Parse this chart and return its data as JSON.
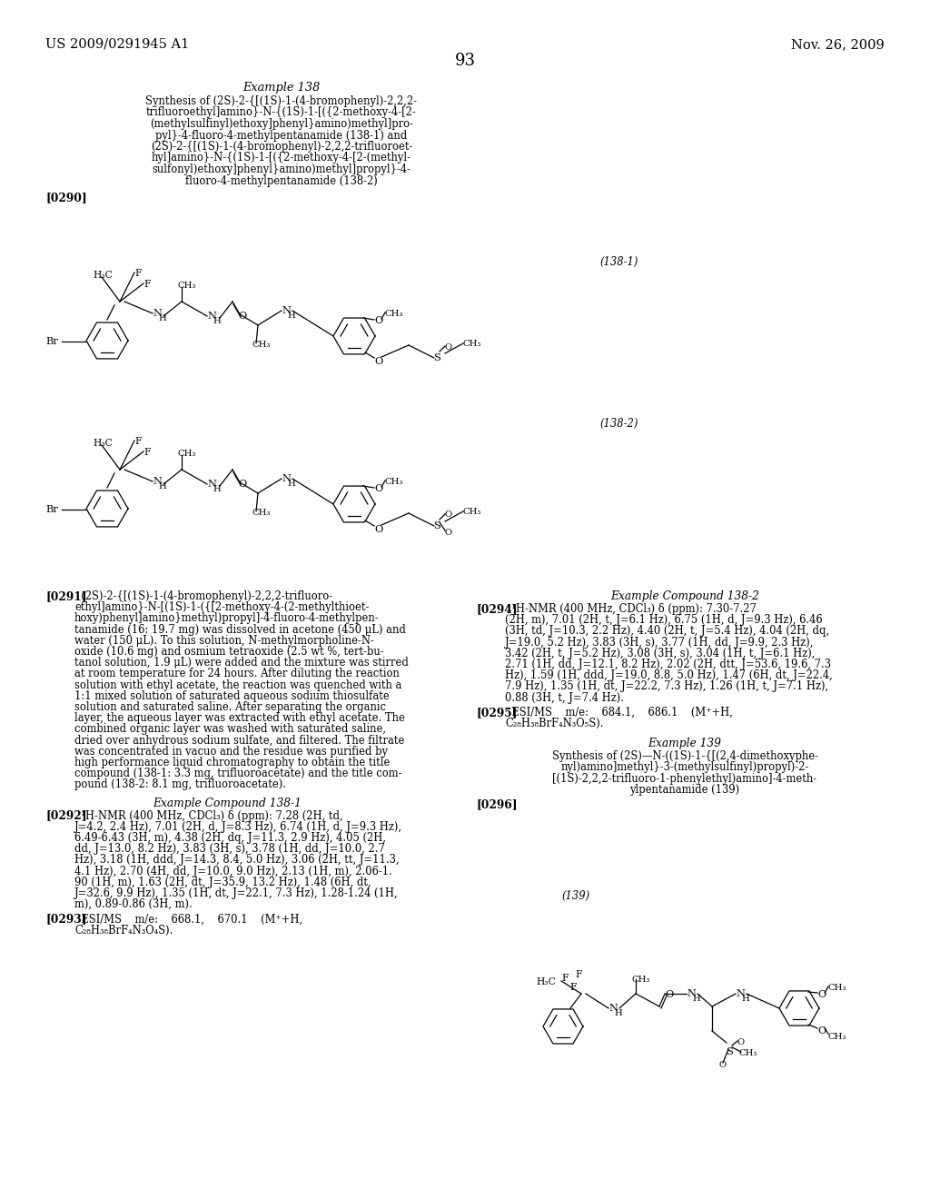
{
  "bg_color": "#ffffff",
  "header_left": "US 2009/0291945 A1",
  "header_right": "Nov. 26, 2009",
  "page_number": "93",
  "example_title": "Example 138",
  "example_subtitle_lines": [
    "Synthesis of (2S)-2-{[(1S)-1-(4-bromophenyl)-2,2,2-",
    "trifluoroethyl]amino}-N-{(1S)-1-[({2-methoxy-4-[2-",
    "(methylsulfinyl)ethoxy]phenyl}amino)methyl]pro-",
    "pyl}-4-fluoro-4-methylpentanamide (138-1) and",
    "(2S)-2-{[(1S)-1-(4-bromophenyl)-2,2,2-trifluoroet-",
    "hyl]amino}-N-{(1S)-1-[({2-methoxy-4-[2-(methyl-",
    "sulfonyl)ethoxy]phenyl}amino)methyl]propyl}-4-",
    "fluoro-4-methylpentanamide (138-2)"
  ],
  "para_0290": "[0290]",
  "compound_label_138_1": "(138-1)",
  "compound_label_138_2": "(138-2)",
  "para_0291_label": "[0291]",
  "para_0291_text": [
    "  (2S)-2-{[(1S)-1-(4-bromophenyl)-2,2,2-trifluoro-",
    "ethyl]amino}-N-[(1S)-1-({[2-methoxy-4-(2-methylthioet-",
    "hoxy)phenyl]amino}methyl)propyl]-4-fluoro-4-methylpen-",
    "tanamide (16: 19.7 mg) was dissolved in acetone (450 μL) and",
    "water (150 μL). To this solution, N-methylmorpholine-N-",
    "oxide (10.6 mg) and osmium tetraoxide (2.5 wt %, tert-bu-",
    "tanol solution, 1.9 μL) were added and the mixture was stirred",
    "at room temperature for 24 hours. After diluting the reaction",
    "solution with ethyl acetate, the reaction was quenched with a",
    "1:1 mixed solution of saturated aqueous sodium thiosulfate",
    "solution and saturated saline. After separating the organic",
    "layer, the aqueous layer was extracted with ethyl acetate. The",
    "combined organic layer was washed with saturated saline,",
    "dried over anhydrous sodium sulfate, and filtered. The filtrate",
    "was concentrated in vacuo and the residue was purified by",
    "high performance liquid chromatography to obtain the title",
    "compound (138-1: 3.3 mg, trifluoroacetate) and the title com-",
    "pound (138-2: 8.1 mg, trifluoroacetate)."
  ],
  "example_compound_138_1_title": "Example Compound 138-1",
  "para_0292_label": "[0292]",
  "para_0292_text": [
    "  ¹H-NMR (400 MHz, CDCl₃) δ (ppm): 7.28 (2H, td,",
    "J=4.2, 2.4 Hz), 7.01 (2H, d, J=8.3 Hz), 6.74 (1H, d, J=9.3 Hz),",
    "6.49-6.43 (3H, m), 4.38 (2H, dq, J=11.3, 2.9 Hz), 4.05 (2H,",
    "dd, J=13.0, 8.2 Hz), 3.83 (3H, s), 3.78 (1H, dd, J=10.0, 2.7",
    "Hz), 3.18 (1H, ddd, J=14.3, 8.4, 5.0 Hz), 3.06 (2H, tt, J=11.3,",
    "4.1 Hz), 2.70 (4H, dd, J=10.0, 9.0 Hz), 2.13 (1H, m), 2.06-1.",
    "90 (1H, m), 1.63 (2H, dt, J=35.9, 13.2 Hz), 1.48 (6H, dt,",
    "J=32.6, 9.9 Hz), 1.35 (1H, dt, J=22.1, 7.3 Hz), 1.28-1.24 (1H,",
    "m), 0.89-0.86 (3H, m)."
  ],
  "para_0293_label": "[0293]",
  "para_0293_text": "  ESI/MS    m/e:    668.1,    670.1    (M⁺+H,\nC₂₈H₃₈BrF₄N₃O₄S).",
  "example_compound_138_2_title": "Example Compound 138-2",
  "para_0294_label": "[0294]",
  "para_0294_text": [
    "  ¹H-NMR (400 MHz, CDCl₃) δ (ppm): 7.30-7.27",
    "(2H, m), 7.01 (2H, t, J=6.1 Hz), 6.75 (1H, d, J=9.3 Hz), 6.46",
    "(3H, td, J=10.3, 2.2 Hz), 4.40 (2H, t, J=5.4 Hz), 4.04 (2H, dq,",
    "J=19.0, 5.2 Hz), 3.83 (3H, s), 3.77 (1H, dd, J=9.9, 2.3 Hz),",
    "3.42 (2H, t, J=5.2 Hz), 3.08 (3H, s), 3.04 (1H, t, J=6.1 Hz),",
    "2.71 (1H, dd, J=12.1, 8.2 Hz), 2.02 (2H, dtt, J=53.6, 19.6, 7.3",
    "Hz), 1.59 (1H, ddd, J=19.0, 8.8, 5.0 Hz), 1.47 (6H, dt, J=22.4,",
    "7.9 Hz), 1.35 (1H, dt, J=22.2, 7.3 Hz), 1.26 (1H, t, J=7.1 Hz),",
    "0.88 (3H, t, J=7.4 Hz)."
  ],
  "para_0295_label": "[0295]",
  "para_0295_text": "  ESI/MS    m/e:    684.1,    686.1    (M⁺+H,\nC₂₈H₃₈BrF₄N₃O₅S).",
  "example_139_title": "Example 139",
  "example_139_subtitle_lines": [
    "Synthesis of (2S)—N-((1S)-1-{[(2,4-dimethoxyphe-",
    "nyl)amino]methyl}-3-(methylsulfinyl)propyl)-2-",
    "[(1S)-2,2,2-trifluoro-1-phenylethyl)amino]-4-meth-",
    "ylpentanamide (139)"
  ],
  "para_0296": "[0296]",
  "compound_label_139": "(139)"
}
